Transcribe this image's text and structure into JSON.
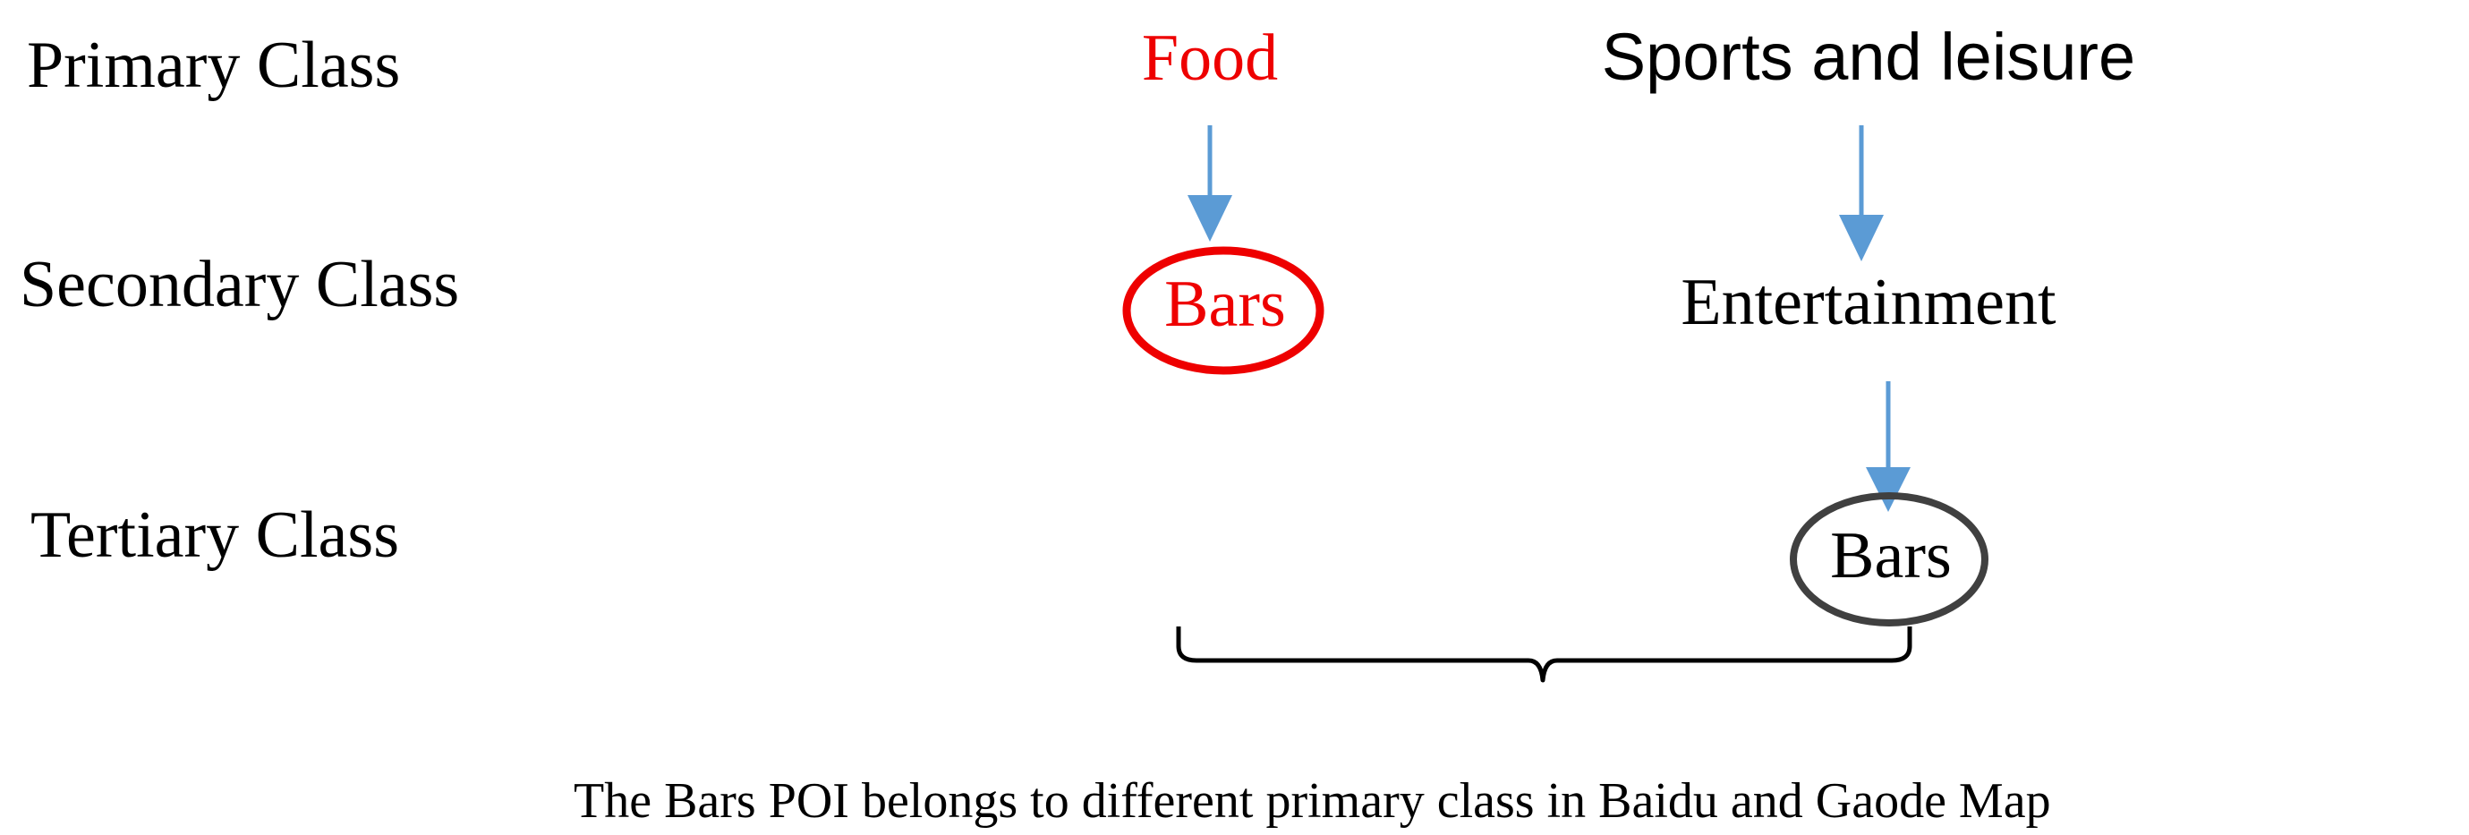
{
  "levels": {
    "primary": "Primary Class",
    "secondary": "Secondary Class",
    "tertiary": "Tertiary Class"
  },
  "baidu": {
    "primary": "Food",
    "secondary": "Bars"
  },
  "gaode": {
    "primary": "Sports and leisure",
    "secondary": "Entertainment",
    "tertiary": "Bars"
  },
  "caption": "The Bars POI belongs to different primary class in Baidu and Gaode Map",
  "colors": {
    "highlight": "#ee0000",
    "arrow": "#5b9bd5",
    "ellipse_dark": "#404040",
    "text": "#000000"
  }
}
